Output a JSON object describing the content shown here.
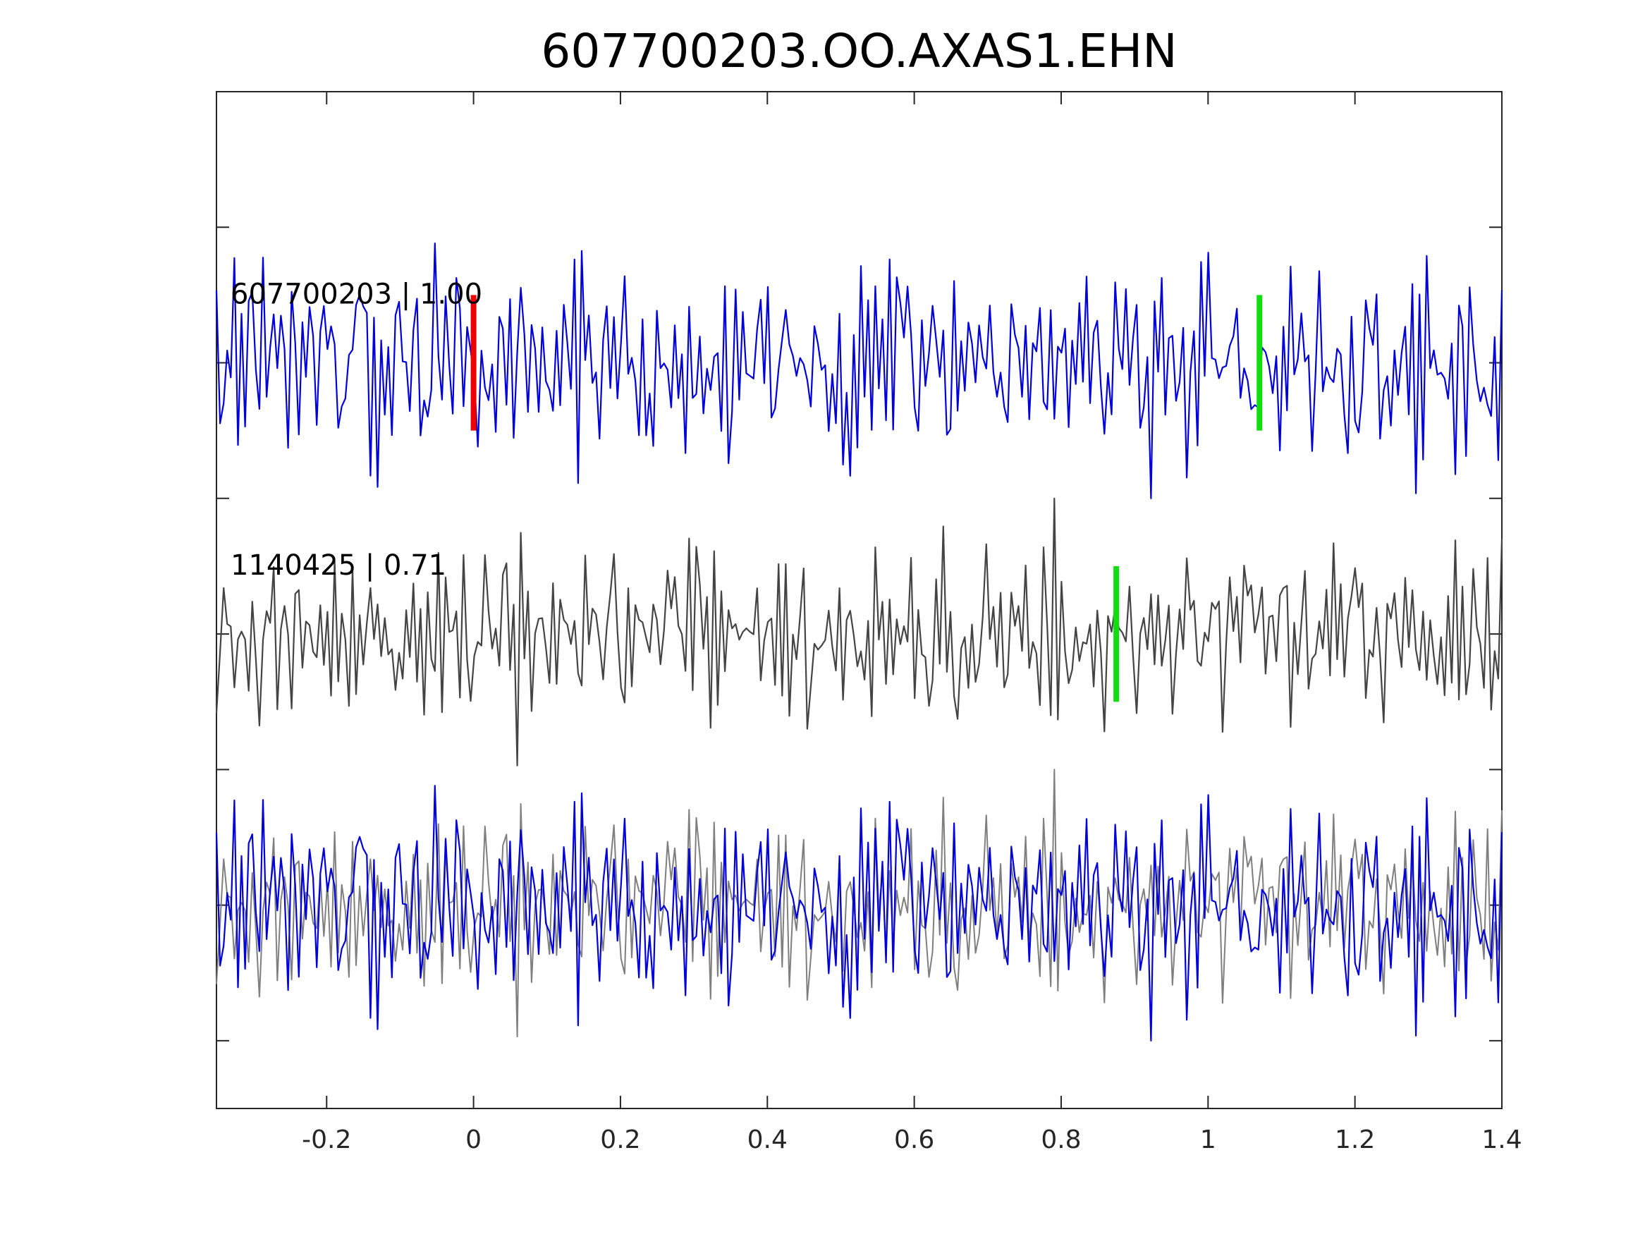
{
  "chart_data": {
    "type": "line",
    "title": "607700203.OO.AXAS1.EHN",
    "xlabel": "",
    "ylabel": "",
    "xlim": [
      -0.35,
      1.4
    ],
    "x_ticks": [
      {
        "value": -0.2,
        "label": "-0.2"
      },
      {
        "value": 0,
        "label": "0"
      },
      {
        "value": 0.2,
        "label": "0.2"
      },
      {
        "value": 0.4,
        "label": "0.4"
      },
      {
        "value": 0.6,
        "label": "0.6"
      },
      {
        "value": 0.8,
        "label": "0.8"
      },
      {
        "value": 1,
        "label": "1"
      },
      {
        "value": 1.2,
        "label": "1.2"
      },
      {
        "value": 1.4,
        "label": "1.4"
      }
    ],
    "ylim": [
      -3.5,
      4
    ],
    "y_ticks": [
      -3,
      -2,
      -1,
      0,
      1,
      2,
      3
    ],
    "grid": false,
    "colors": {
      "master": "#0000dd",
      "template": "#444444",
      "template_overlay": "#7f7f7f",
      "pick_p": "#ee0000",
      "pick_s": "#11dd11",
      "axes": "#262626"
    },
    "traces": [
      {
        "label": "607700203 | 1.00",
        "offset": 2,
        "color": "master",
        "picks": [
          {
            "x": 0.0,
            "color": "pick_p"
          },
          {
            "x": 1.07,
            "color": "pick_s"
          }
        ]
      },
      {
        "label": "1140425 | 0.71",
        "offset": 0,
        "color": "template",
        "picks": [
          {
            "x": 0.875,
            "color": "pick_s"
          }
        ]
      },
      {
        "label": "",
        "offset": -2,
        "color": "overlay",
        "picks": []
      }
    ]
  }
}
